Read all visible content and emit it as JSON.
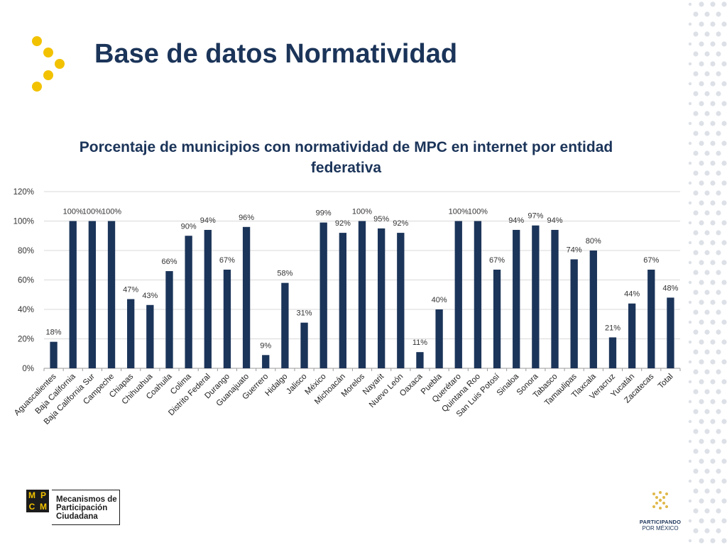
{
  "header": {
    "title": "Base de datos Normatividad"
  },
  "colors": {
    "bar": "#1b3459",
    "title": "#1b3459",
    "accent": "#f2c200",
    "pattern": "#dde1e7"
  },
  "chart_data": {
    "type": "bar",
    "title": "Porcentaje de municipios con normatividad de MPC en internet por entidad federativa",
    "xlabel": "",
    "ylabel": "",
    "ylim": [
      0,
      120
    ],
    "y_ticks": [
      "0%",
      "20%",
      "40%",
      "60%",
      "80%",
      "100%",
      "120%"
    ],
    "grid": true,
    "legend": "none",
    "categories": [
      "Aguascalientes",
      "Baja California",
      "Baja California Sur",
      "Campeche",
      "Chiapas",
      "Chihuahua",
      "Coahuila",
      "Colima",
      "Distrito Federal",
      "Durango",
      "Guanajuato",
      "Guerrero",
      "Hidalgo",
      "Jalisco",
      "México",
      "Michoacán",
      "Morelos",
      "Nayarit",
      "Nuevo León",
      "Oaxaca",
      "Puebla",
      "Querétaro",
      "Quintana Roo",
      "San Luis Potosí",
      "Sinaloa",
      "Sonora",
      "Tabasco",
      "Tamaulipas",
      "Tlaxcala",
      "Veracruz",
      "Yucatán",
      "Zacatecas",
      "Total"
    ],
    "values": [
      18,
      100,
      100,
      100,
      47,
      43,
      66,
      90,
      94,
      67,
      96,
      9,
      58,
      31,
      99,
      92,
      100,
      95,
      92,
      11,
      40,
      100,
      100,
      67,
      94,
      97,
      94,
      74,
      80,
      21,
      44,
      67,
      48
    ],
    "data_labels": [
      "18%",
      "100%",
      "100%",
      "100%",
      "47%",
      "43%",
      "66%",
      "90%",
      "94%",
      "67%",
      "96%",
      "9%",
      "58%",
      "31%",
      "99%",
      "92%",
      "100%",
      "95%",
      "92%",
      "11%",
      "40%",
      "100%",
      "100%",
      "67%",
      "94%",
      "97%",
      "94%",
      "74%",
      "80%",
      "21%",
      "44%",
      "67%",
      "48%"
    ]
  },
  "footer": {
    "mpcm_letters": [
      "M",
      "P",
      "C",
      "M"
    ],
    "mpcm_line1": "Mecanismos de",
    "mpcm_line2": "Participación",
    "mpcm_line3": "Ciudadana",
    "partner_line1": "PARTICIPANDO",
    "partner_line2": "POR MÉXICO"
  }
}
